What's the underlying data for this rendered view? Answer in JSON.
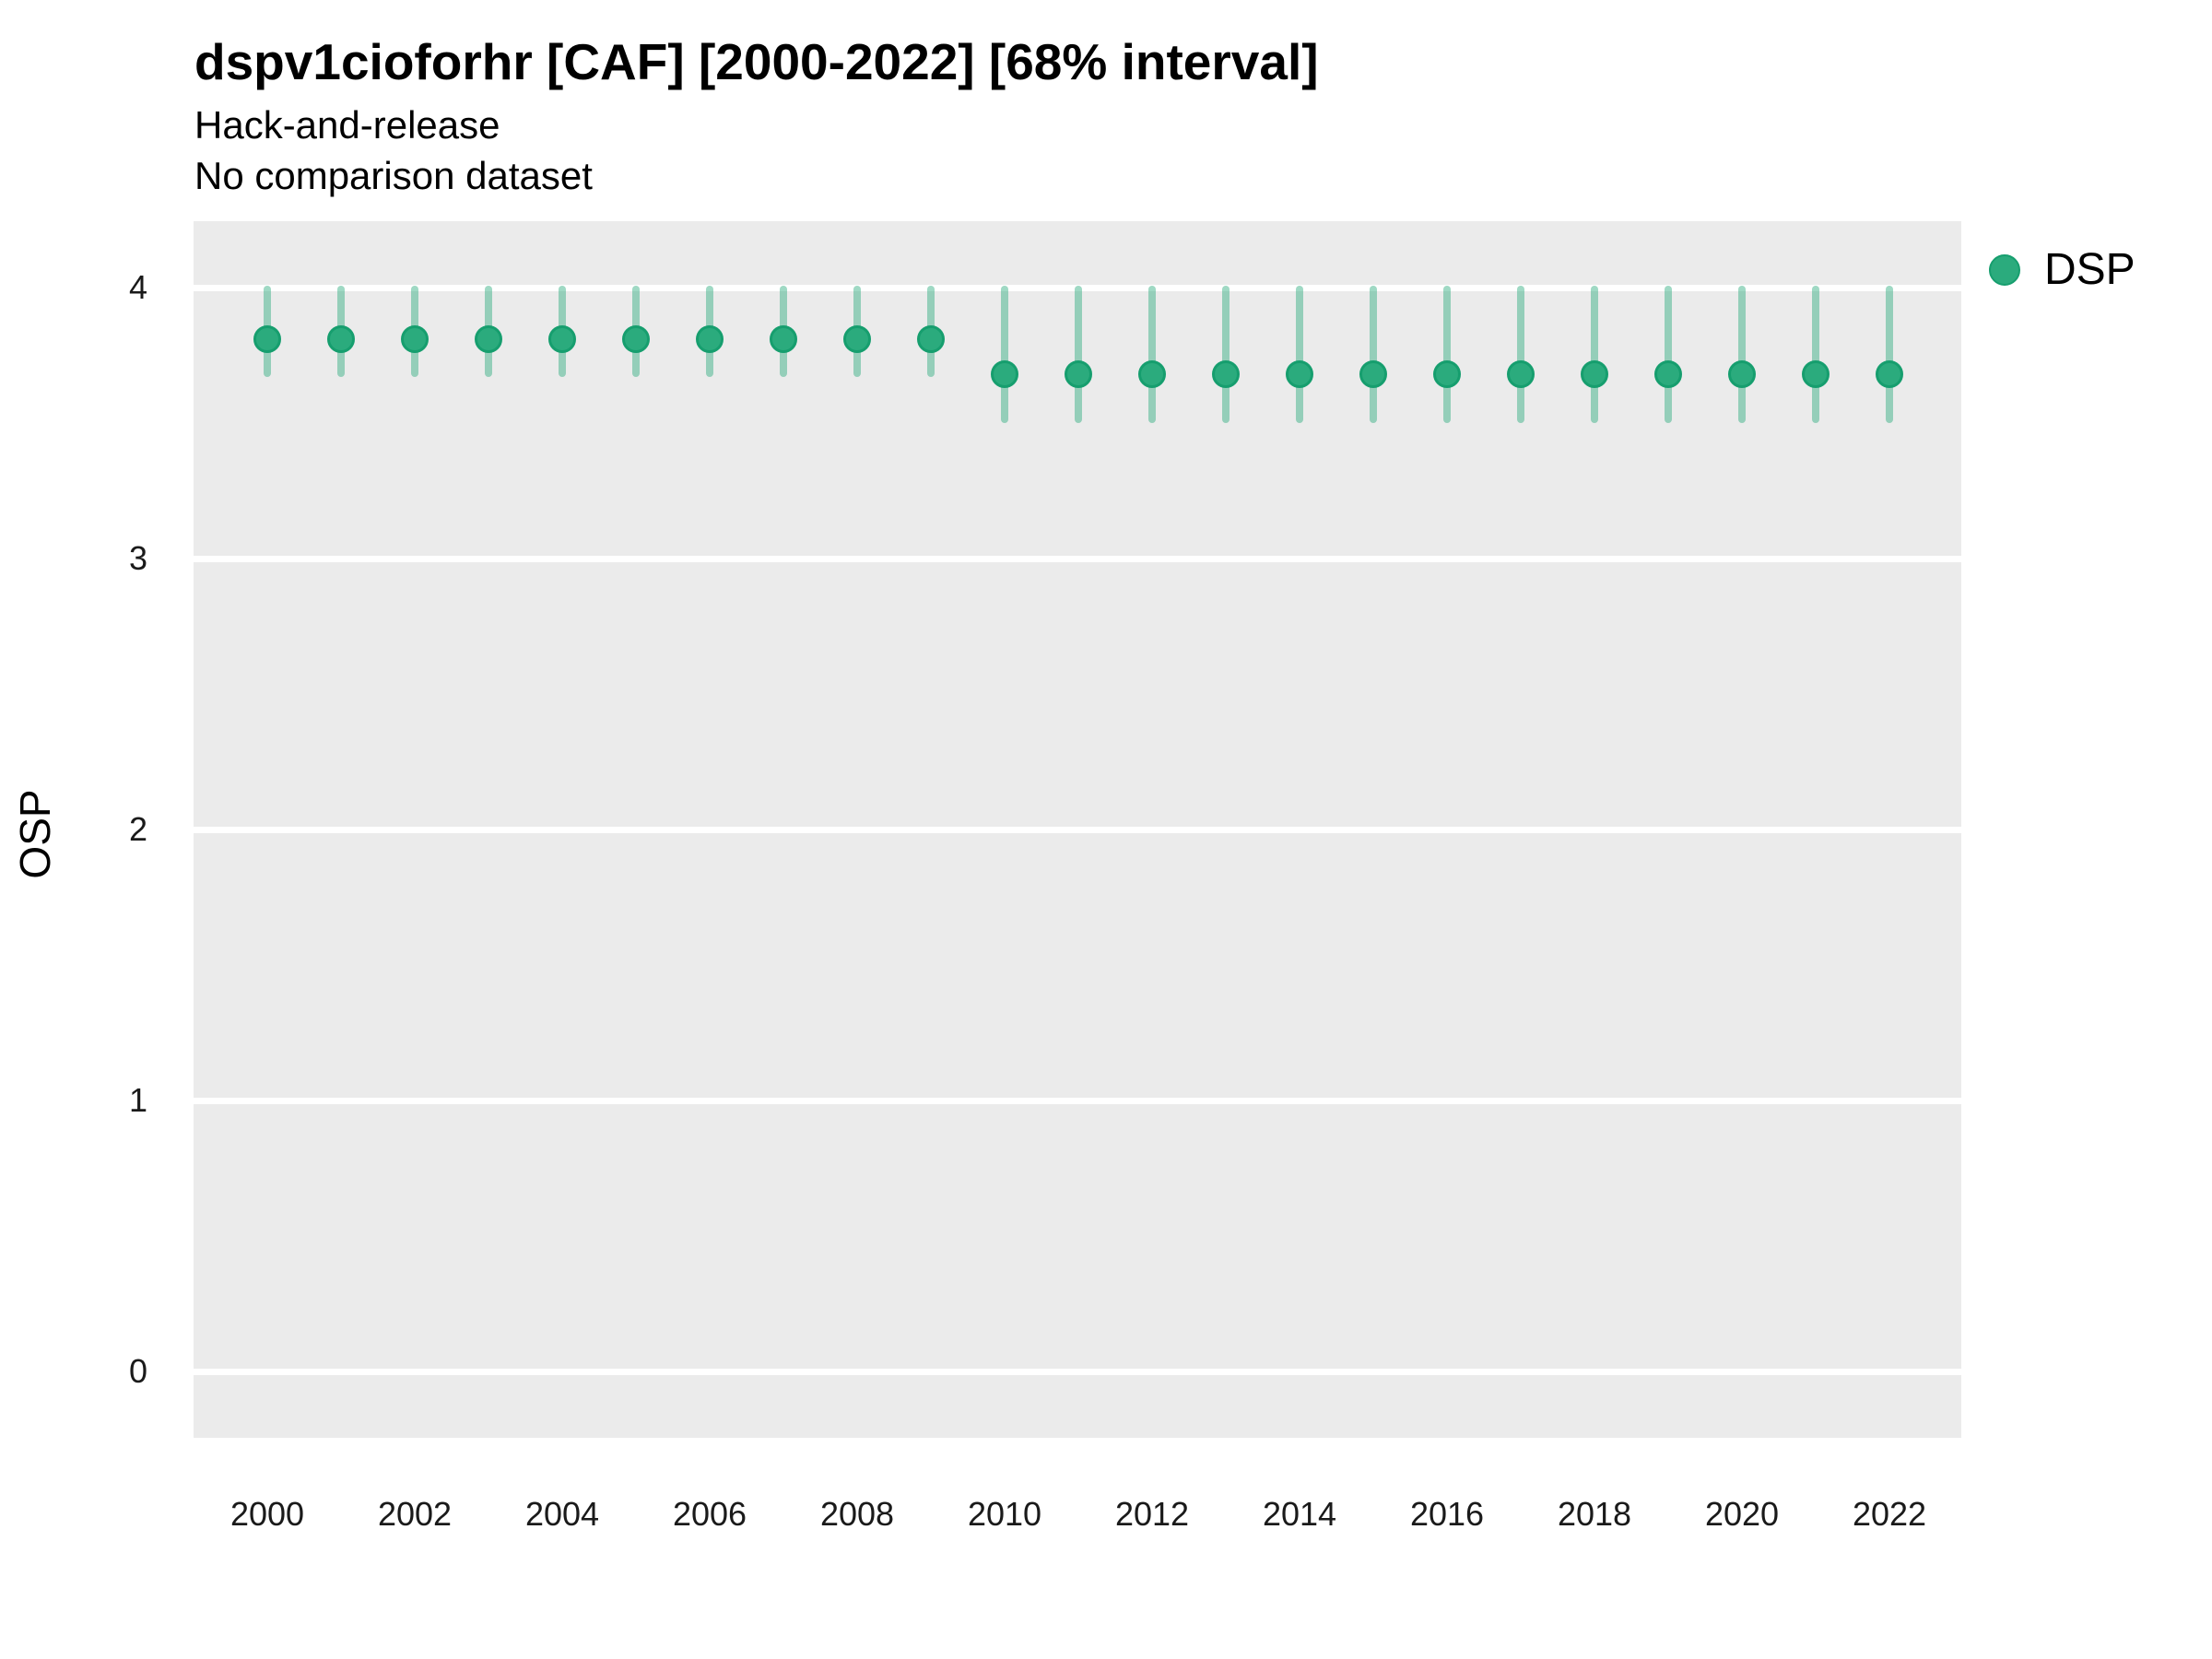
{
  "title": "dspv1cioforhr [CAF] [2000-2022] [68% interval]",
  "subtitle_line1": "Hack-and-release",
  "subtitle_line2": "No comparison dataset",
  "y_axis": {
    "label": "OSP",
    "tick_values": [
      0,
      1,
      2,
      3,
      4
    ]
  },
  "x_axis": {
    "tick_values": [
      2000,
      2002,
      2004,
      2006,
      2008,
      2010,
      2012,
      2014,
      2016,
      2018,
      2020,
      2022
    ]
  },
  "legend": {
    "label": "DSP",
    "position": "right-top"
  },
  "colors": {
    "point_fill": "#2bab7d",
    "point_border": "#169e6e",
    "interval_bar": "rgba(43, 171, 125, 0.45)",
    "plot_background": "#ebebeb",
    "gridline": "#ffffff"
  },
  "chart_data": {
    "type": "scatter",
    "title": "dspv1cioforhr [CAF] [2000-2022] [68% interval]",
    "subtitle": "Hack-and-release / No comparison dataset",
    "xlabel": "",
    "ylabel": "OSP",
    "interval": "68%",
    "xlim": [
      1999,
      2023
    ],
    "ylim": [
      -0.25,
      4.25
    ],
    "grid": "horizontal-major-only",
    "legend_position": "right-top",
    "series": [
      {
        "name": "DSP",
        "x": [
          2000,
          2001,
          2002,
          2003,
          2004,
          2005,
          2006,
          2007,
          2008,
          2009,
          2010,
          2011,
          2012,
          2013,
          2014,
          2015,
          2016,
          2017,
          2018,
          2019,
          2020,
          2021,
          2022
        ],
        "y": [
          3.81,
          3.81,
          3.81,
          3.81,
          3.81,
          3.81,
          3.81,
          3.81,
          3.81,
          3.81,
          3.68,
          3.68,
          3.68,
          3.68,
          3.68,
          3.68,
          3.68,
          3.68,
          3.68,
          3.68,
          3.68,
          3.68,
          3.68
        ],
        "y_lower": [
          3.67,
          3.67,
          3.67,
          3.67,
          3.67,
          3.67,
          3.67,
          3.67,
          3.67,
          3.67,
          3.5,
          3.5,
          3.5,
          3.5,
          3.5,
          3.5,
          3.5,
          3.5,
          3.5,
          3.5,
          3.5,
          3.5,
          3.5
        ],
        "y_upper": [
          4.0,
          4.0,
          4.0,
          4.0,
          4.0,
          4.0,
          4.0,
          4.0,
          4.0,
          4.0,
          4.0,
          4.0,
          4.0,
          4.0,
          4.0,
          4.0,
          4.0,
          4.0,
          4.0,
          4.0,
          4.0,
          4.0,
          4.0
        ]
      }
    ]
  }
}
